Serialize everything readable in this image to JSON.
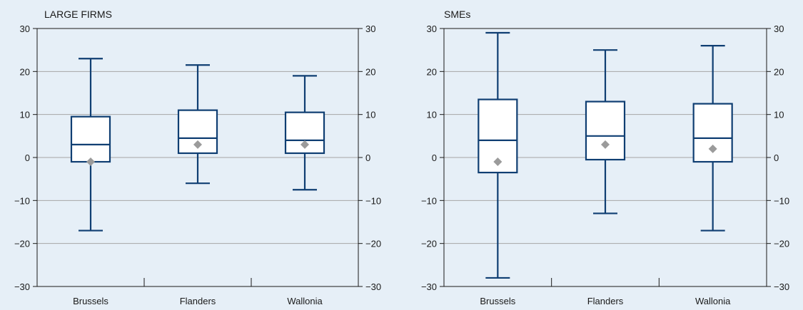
{
  "chart_data": [
    {
      "type": "boxplot",
      "title": "LARGE FIRMS",
      "categories": [
        "Brussels",
        "Flanders",
        "Wallonia"
      ],
      "ylim": [
        -30,
        30
      ],
      "yticks": [
        30,
        20,
        10,
        0,
        -10,
        -20,
        -30
      ],
      "ytick_labels": [
        "30",
        "20",
        "10",
        "0",
        "−10",
        "−20",
        "−30"
      ],
      "grid": true,
      "colors": {
        "box": "#0f3e72",
        "mean": "#9b9b9b",
        "grid": "#a6a6a6"
      },
      "boxes": [
        {
          "whisker_low": -17,
          "q1": -1,
          "median": 3,
          "q3": 9.5,
          "whisker_high": 23,
          "mean": -1
        },
        {
          "whisker_low": -6,
          "q1": 1,
          "median": 4.5,
          "q3": 11,
          "whisker_high": 21.5,
          "mean": 3
        },
        {
          "whisker_low": -7.5,
          "q1": 1,
          "median": 4,
          "q3": 10.5,
          "whisker_high": 19,
          "mean": 3
        }
      ]
    },
    {
      "type": "boxplot",
      "title": "SMEs",
      "categories": [
        "Brussels",
        "Flanders",
        "Wallonia"
      ],
      "ylim": [
        -30,
        30
      ],
      "yticks": [
        30,
        20,
        10,
        0,
        -10,
        -20,
        -30
      ],
      "ytick_labels": [
        "30",
        "20",
        "10",
        "0",
        "−10",
        "−20",
        "−30"
      ],
      "grid": true,
      "colors": {
        "box": "#0f3e72",
        "mean": "#9b9b9b",
        "grid": "#a6a6a6"
      },
      "boxes": [
        {
          "whisker_low": -28,
          "q1": -3.5,
          "median": 4,
          "q3": 13.5,
          "whisker_high": 29,
          "mean": -1
        },
        {
          "whisker_low": -13,
          "q1": -0.5,
          "median": 5,
          "q3": 13,
          "whisker_high": 25,
          "mean": 3
        },
        {
          "whisker_low": -17,
          "q1": -1,
          "median": 4.5,
          "q3": 12.5,
          "whisker_high": 26,
          "mean": 2
        }
      ]
    }
  ]
}
